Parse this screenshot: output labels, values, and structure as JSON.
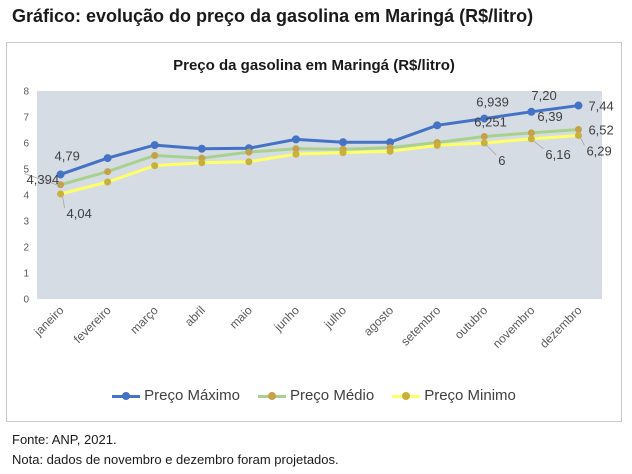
{
  "page": {
    "title": "Gráfico: evolução do preço da gasolina em Maringá (R$/litro)",
    "source": "Fonte: ANP, 2021.",
    "note": "Nota: dados de novembro e dezembro foram projetados."
  },
  "chart_data": {
    "type": "line",
    "title": "Preço da gasolina em Maringá (R$/litro)",
    "xlabel": "",
    "ylabel": "",
    "ylim": [
      0,
      8
    ],
    "yticks": [
      0,
      1,
      2,
      3,
      4,
      5,
      6,
      7,
      8
    ],
    "grid": false,
    "legend_position": "bottom",
    "categories": [
      "janeiro",
      "fevereiro",
      "março",
      "abril",
      "maio",
      "junho",
      "julho",
      "agosto",
      "setembro",
      "outubro",
      "novembro",
      "dezembro"
    ],
    "series": [
      {
        "name": "Preço Máximo",
        "color": "#4472c4",
        "values": [
          4.79,
          5.42,
          5.92,
          5.78,
          5.8,
          6.14,
          6.03,
          6.03,
          6.68,
          6.939,
          7.2,
          7.44
        ],
        "labels": [
          {
            "index": 0,
            "text": "4,79"
          },
          {
            "index": 9,
            "text": "6,939"
          },
          {
            "index": 10,
            "text": "7,20"
          },
          {
            "index": 11,
            "text": "7,44"
          }
        ]
      },
      {
        "name": "Preço Médio",
        "color": "#a9d18e",
        "marker_color": "#c5a24a",
        "values": [
          4.394,
          4.9,
          5.52,
          5.42,
          5.65,
          5.78,
          5.76,
          5.82,
          6.02,
          6.251,
          6.39,
          6.52
        ],
        "labels": [
          {
            "index": 0,
            "text": "4,394"
          },
          {
            "index": 9,
            "text": "6,251"
          },
          {
            "index": 10,
            "text": "6,39"
          },
          {
            "index": 11,
            "text": "6,52"
          }
        ]
      },
      {
        "name": "Preço Minimo",
        "color": "#ffff66",
        "marker_color": "#c9b03a",
        "values": [
          4.04,
          4.5,
          5.13,
          5.24,
          5.28,
          5.57,
          5.63,
          5.68,
          5.91,
          6.0,
          6.16,
          6.29
        ],
        "labels": [
          {
            "index": 0,
            "text": "4,04"
          },
          {
            "index": 9,
            "text": "6"
          },
          {
            "index": 10,
            "text": "6,16"
          },
          {
            "index": 11,
            "text": "6,29"
          }
        ]
      }
    ]
  }
}
